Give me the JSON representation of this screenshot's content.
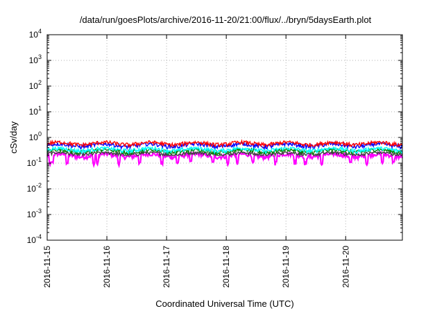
{
  "chart_data": {
    "type": "line",
    "title": "/data/run/goesPlots/archive/2016-11-20/21:00/flux/../bryn/5daysEarth.plot",
    "xlabel": "Coordinated Universal Time (UTC)",
    "ylabel": "cSv/day",
    "yscale": "log",
    "ylim": [
      0.0001,
      10000
    ],
    "xlim_days": [
      0,
      5.95
    ],
    "x_start": "2016-11-15T00:00",
    "y_ticks": [
      {
        "value": 0.0001,
        "base": "10",
        "exp": "-4"
      },
      {
        "value": 0.001,
        "base": "10",
        "exp": "-3"
      },
      {
        "value": 0.01,
        "base": "10",
        "exp": "-2"
      },
      {
        "value": 0.1,
        "base": "10",
        "exp": "-1"
      },
      {
        "value": 1,
        "base": "10",
        "exp": "0"
      },
      {
        "value": 10,
        "base": "10",
        "exp": "1"
      },
      {
        "value": 100,
        "base": "10",
        "exp": "2"
      },
      {
        "value": 1000,
        "base": "10",
        "exp": "3"
      },
      {
        "value": 10000,
        "base": "10",
        "exp": "4"
      }
    ],
    "x_ticks": [
      {
        "day": 0,
        "label": "2016-11-15"
      },
      {
        "day": 1,
        "label": "2016-11-16"
      },
      {
        "day": 2,
        "label": "2016-11-17"
      },
      {
        "day": 3,
        "label": "2016-11-18"
      },
      {
        "day": 4,
        "label": "2016-11-19"
      },
      {
        "day": 5,
        "label": "2016-11-20"
      }
    ],
    "grid": true,
    "series": [
      {
        "color": "#ff00ff",
        "base": 0.2,
        "min": 0.08,
        "max": 0.26,
        "dips": true
      },
      {
        "color": "#404040",
        "base": 0.235,
        "min": 0.2,
        "max": 0.27,
        "dips": false
      },
      {
        "color": "#008000",
        "base": 0.3,
        "min": 0.22,
        "max": 0.36,
        "dips": false
      },
      {
        "color": "#00ffff",
        "base": 0.34,
        "min": 0.24,
        "max": 0.42,
        "dips": false
      },
      {
        "color": "#0000ff",
        "base": 0.5,
        "min": 0.22,
        "max": 0.65,
        "dips": false
      },
      {
        "color": "#ff0000",
        "base": 0.58,
        "min": 0.45,
        "max": 0.75,
        "dips": false
      }
    ]
  }
}
